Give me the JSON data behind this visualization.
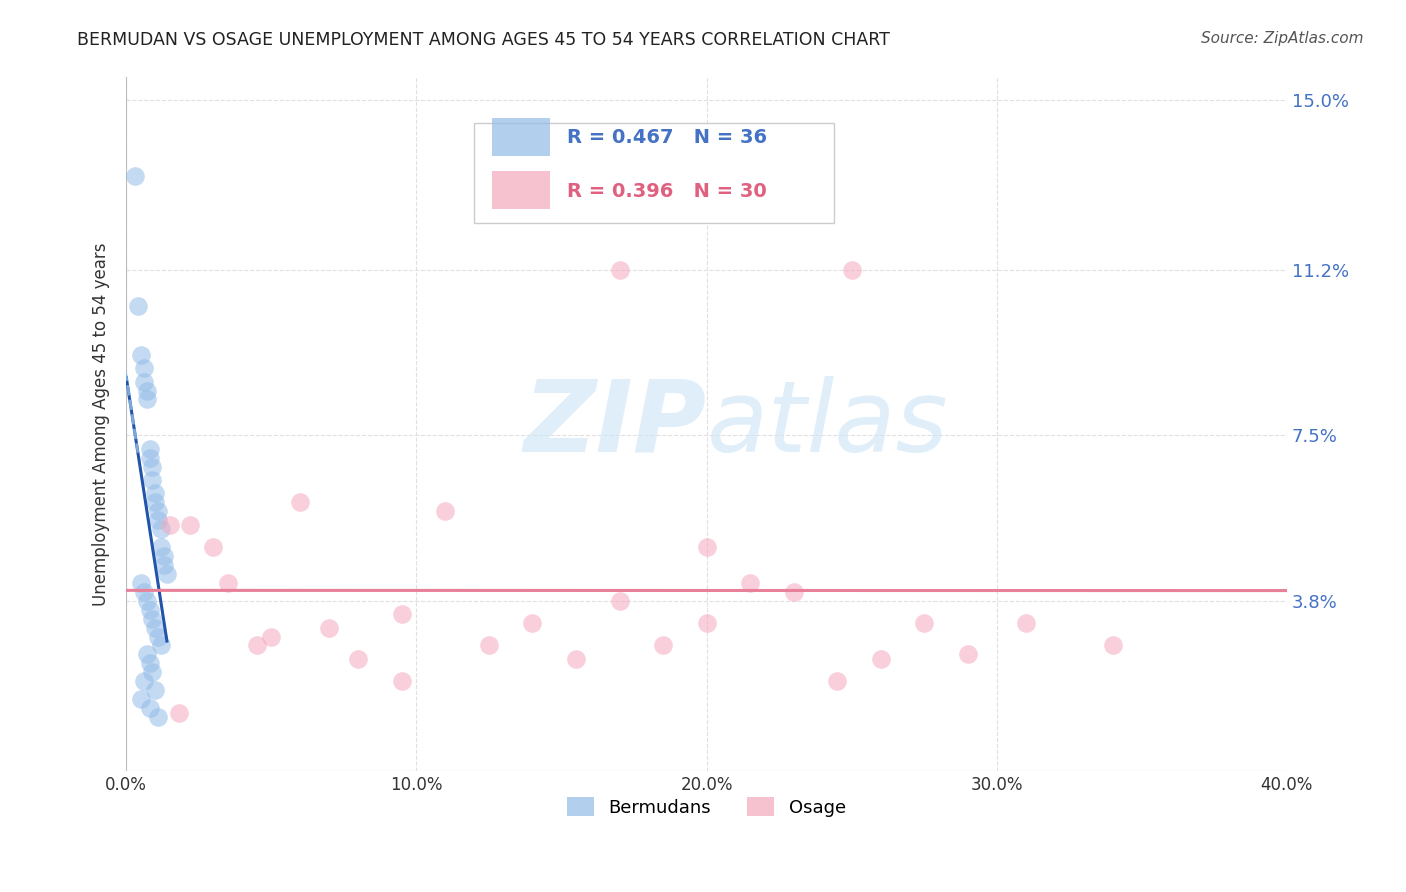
{
  "title": "BERMUDAN VS OSAGE UNEMPLOYMENT AMONG AGES 45 TO 54 YEARS CORRELATION CHART",
  "source": "Source: ZipAtlas.com",
  "ylabel": "Unemployment Among Ages 45 to 54 years",
  "xlim": [
    0.0,
    0.4
  ],
  "ylim": [
    0.0,
    0.155
  ],
  "xticks": [
    0.0,
    0.1,
    0.2,
    0.3,
    0.4
  ],
  "xticklabels": [
    "0.0%",
    "10.0%",
    "20.0%",
    "30.0%",
    "40.0%"
  ],
  "ytick_positions": [
    0.038,
    0.075,
    0.112,
    0.15
  ],
  "ytick_labels": [
    "3.8%",
    "7.5%",
    "11.2%",
    "15.0%"
  ],
  "blue_r": "0.467",
  "blue_n": "36",
  "pink_r": "0.396",
  "pink_n": "30",
  "legend_label_blue": "Bermudans",
  "legend_label_pink": "Osage",
  "blue_scatter_x": [
    0.003,
    0.004,
    0.005,
    0.006,
    0.006,
    0.007,
    0.007,
    0.008,
    0.008,
    0.009,
    0.009,
    0.01,
    0.01,
    0.011,
    0.011,
    0.012,
    0.012,
    0.013,
    0.013,
    0.014,
    0.005,
    0.006,
    0.007,
    0.008,
    0.009,
    0.01,
    0.011,
    0.012,
    0.007,
    0.008,
    0.009,
    0.006,
    0.01,
    0.005,
    0.008,
    0.011
  ],
  "blue_scatter_y": [
    0.133,
    0.104,
    0.093,
    0.09,
    0.087,
    0.085,
    0.083,
    0.072,
    0.07,
    0.068,
    0.065,
    0.062,
    0.06,
    0.058,
    0.056,
    0.054,
    0.05,
    0.048,
    0.046,
    0.044,
    0.042,
    0.04,
    0.038,
    0.036,
    0.034,
    0.032,
    0.03,
    0.028,
    0.026,
    0.024,
    0.022,
    0.02,
    0.018,
    0.016,
    0.014,
    0.012
  ],
  "pink_scatter_x": [
    0.015,
    0.018,
    0.022,
    0.035,
    0.05,
    0.06,
    0.07,
    0.08,
    0.095,
    0.11,
    0.125,
    0.14,
    0.155,
    0.17,
    0.185,
    0.2,
    0.215,
    0.23,
    0.245,
    0.26,
    0.275,
    0.2,
    0.17,
    0.25,
    0.03,
    0.045,
    0.095,
    0.31,
    0.34,
    0.29
  ],
  "pink_scatter_y": [
    0.055,
    0.013,
    0.055,
    0.042,
    0.03,
    0.06,
    0.032,
    0.025,
    0.035,
    0.058,
    0.028,
    0.033,
    0.025,
    0.038,
    0.028,
    0.033,
    0.042,
    0.04,
    0.02,
    0.025,
    0.033,
    0.05,
    0.112,
    0.112,
    0.05,
    0.028,
    0.02,
    0.033,
    0.028,
    0.026
  ],
  "blue_color": "#92bce8",
  "pink_color": "#f4a8bc",
  "blue_line_color": "#2255aa",
  "pink_line_color": "#e8809a",
  "watermark_zip": "ZIP",
  "watermark_atlas": "atlas",
  "background_color": "#ffffff",
  "grid_color": "#e0e0e0",
  "legend_box_color": "#e8e8e8",
  "legend_border_color": "#cccccc"
}
